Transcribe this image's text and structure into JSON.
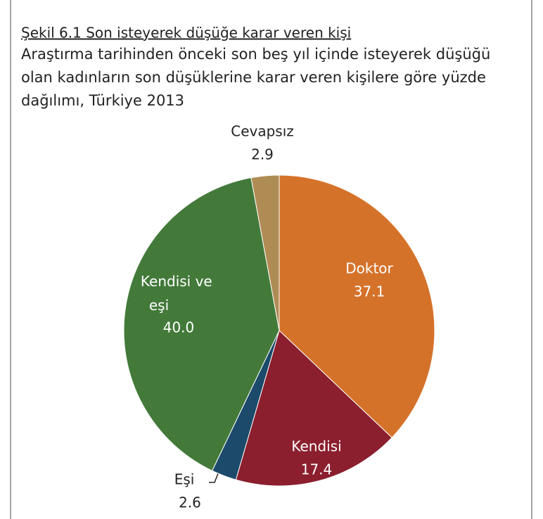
{
  "chart_data": {
    "type": "pie",
    "title": "Şekil 6.1 Son isteyerek düşüğe karar veren kişi",
    "subtitle": [
      "Araştırma tarihinden önceki son beş yıl içinde isteyerek düşüğü",
      "olan kadınların son düşüklerine karar veren kişilere göre yüzde",
      "dağılımı, Türkiye 2013"
    ],
    "categories": [
      "Doktor",
      "Kendisi",
      "Eşi",
      "Kendisi ve eşi",
      "Cevapsız"
    ],
    "values": [
      37.1,
      17.4,
      2.6,
      40,
      2.9
    ],
    "value_labels": [
      "37.1",
      "17.4",
      "2.6",
      "40.0",
      "2.9"
    ],
    "colors": [
      "#d5722a",
      "#8b1f2e",
      "#1b4a6a",
      "#437a3a",
      "#b08c55"
    ]
  }
}
